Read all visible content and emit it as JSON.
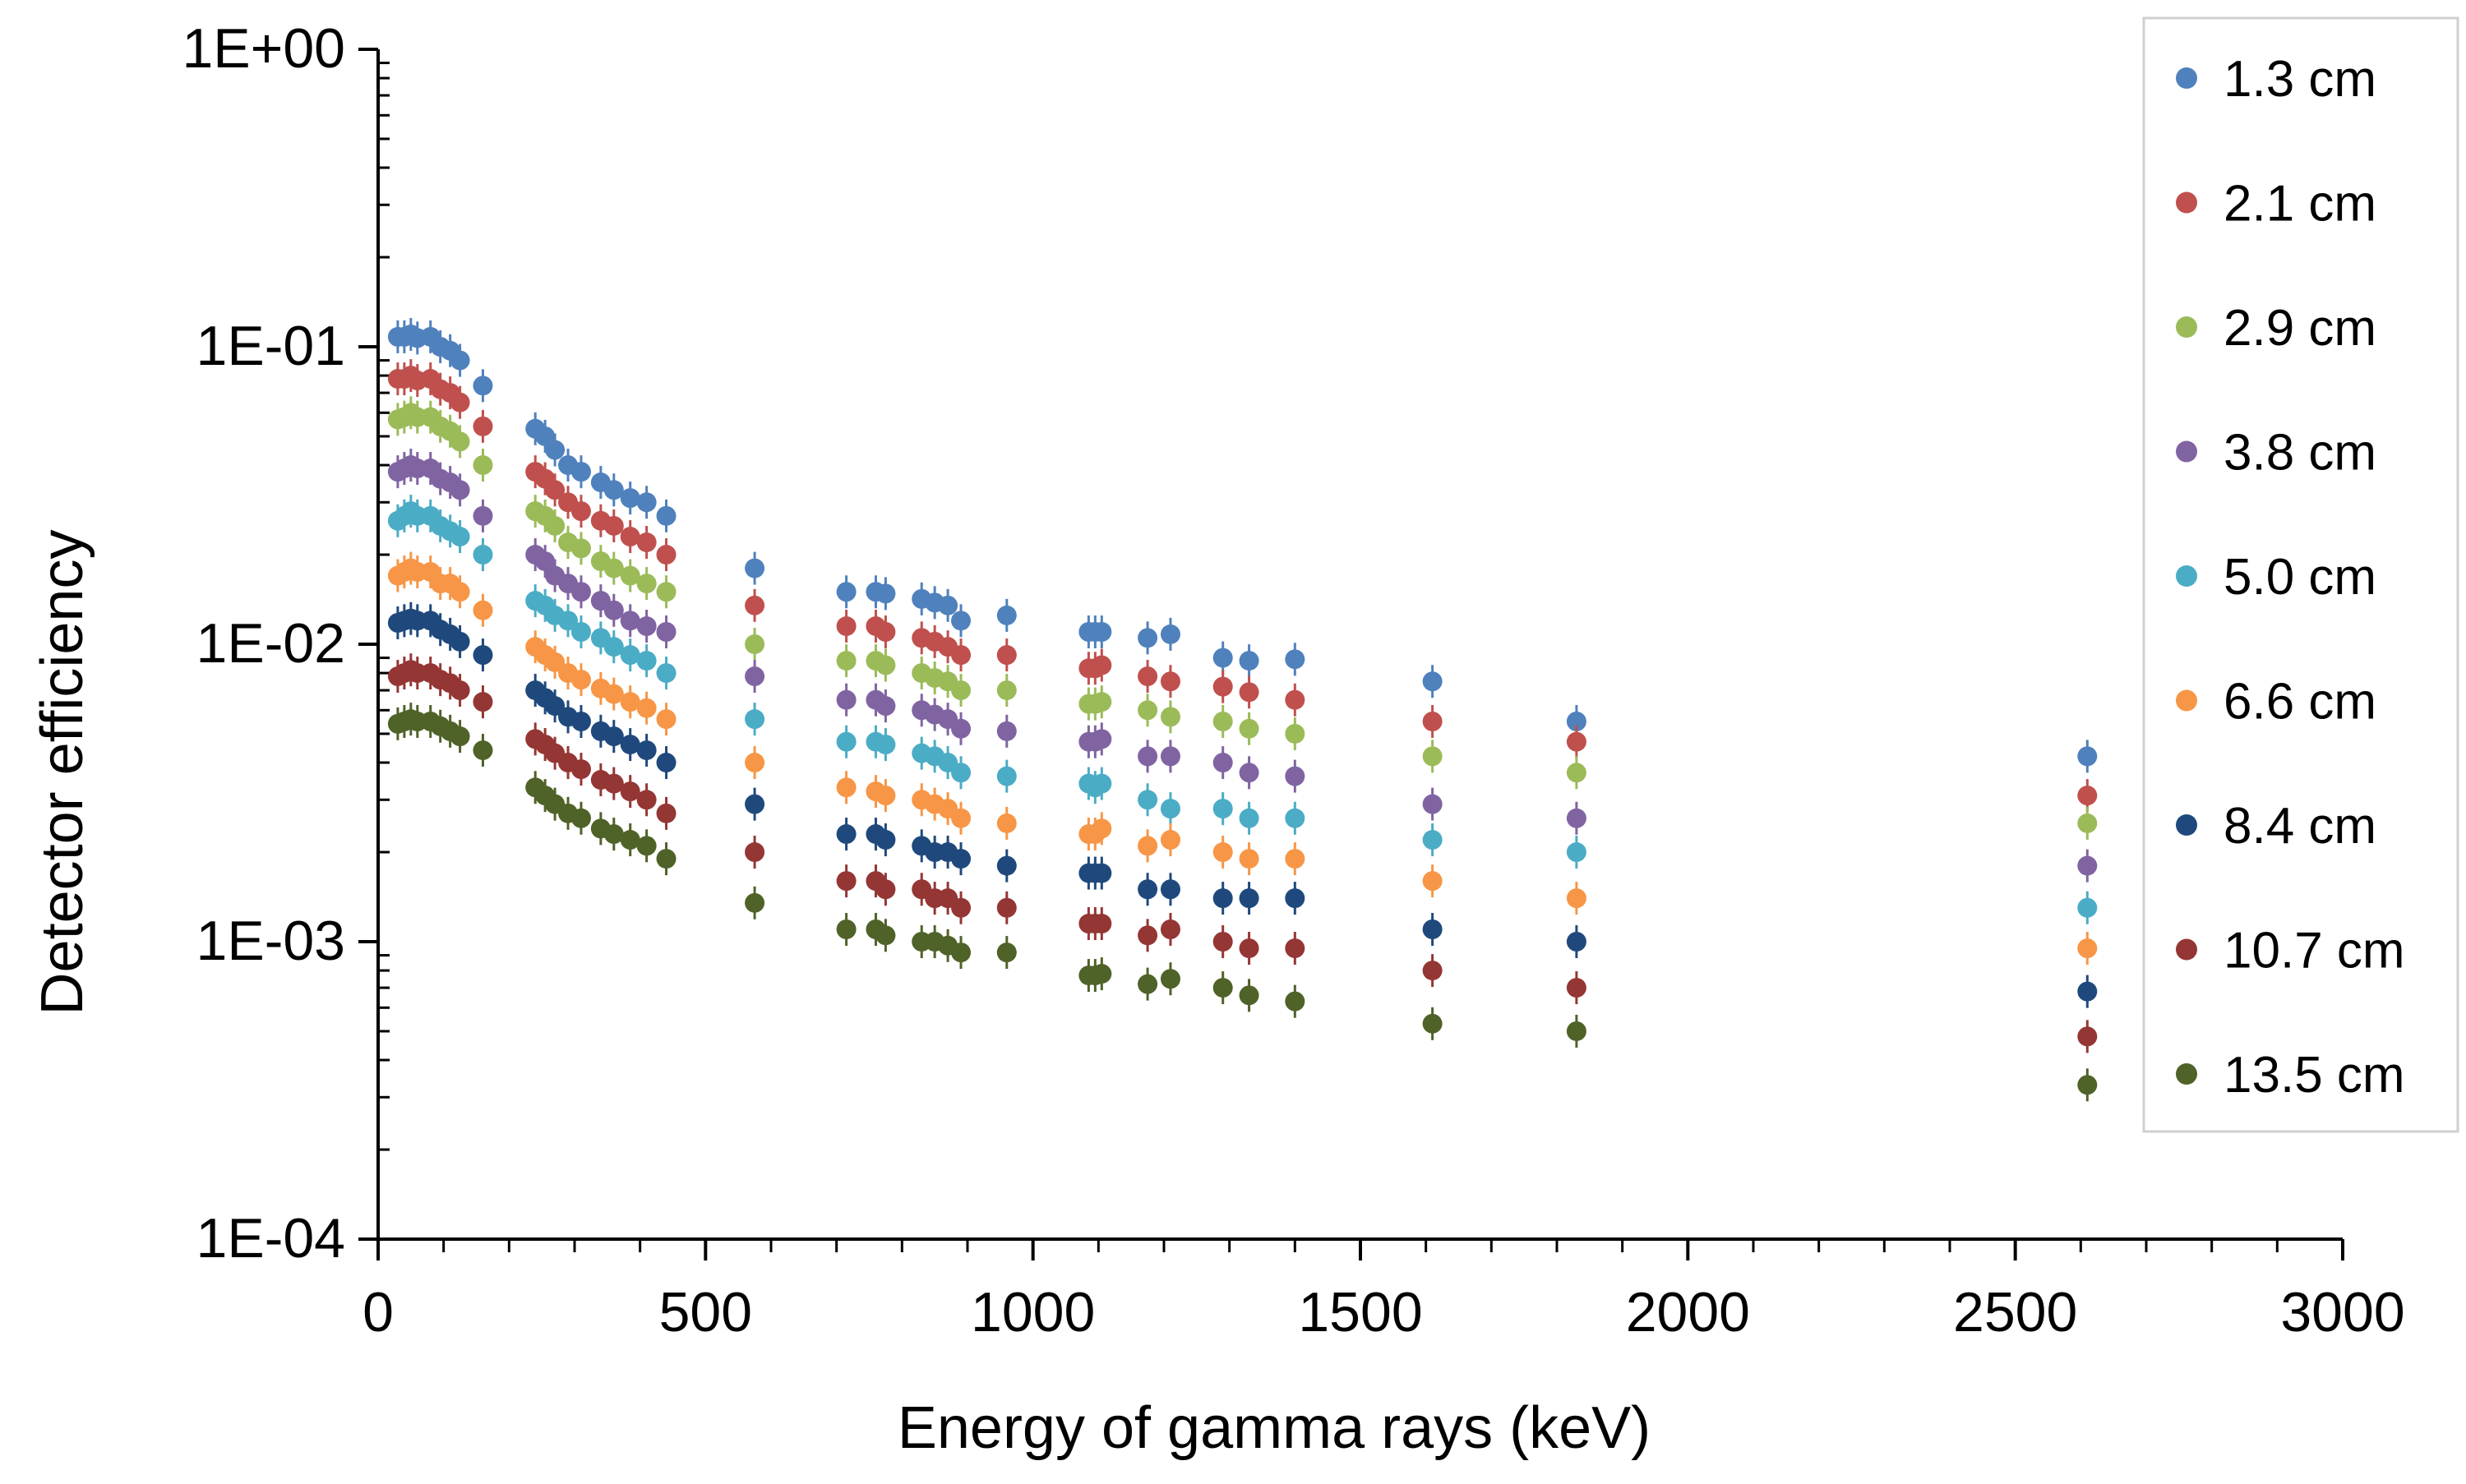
{
  "chart_data": {
    "type": "scatter",
    "title": "",
    "xlabel": "Energy of gamma rays (keV)",
    "ylabel": "Detector efficiency",
    "xlim": [
      0,
      3000
    ],
    "ylim": [
      0.0001,
      1
    ],
    "yscale": "log",
    "x_ticks": [
      "0",
      "500",
      "1000",
      "1500",
      "2000",
      "2500",
      "3000"
    ],
    "y_ticks": [
      "1E+00",
      "1E-01",
      "1E-02",
      "1E-03",
      "1E-04"
    ],
    "y_tick_values": [
      1,
      0.1,
      0.01,
      0.001,
      0.0001
    ],
    "grid": false,
    "legend_position": "right",
    "x": [
      30,
      40,
      50,
      60,
      80,
      95,
      110,
      125,
      160,
      240,
      255,
      270,
      290,
      310,
      340,
      360,
      385,
      410,
      440,
      575,
      715,
      760,
      775,
      830,
      850,
      870,
      890,
      960,
      1085,
      1095,
      1105,
      1175,
      1210,
      1290,
      1330,
      1400,
      1610,
      1830,
      2610
    ],
    "series": [
      {
        "name": "1.3 cm",
        "color": "#4F81BD",
        "values": [
          0.108,
          0.108,
          0.11,
          0.107,
          0.108,
          0.1,
          0.097,
          0.09,
          0.074,
          0.053,
          0.05,
          0.045,
          0.04,
          0.038,
          0.035,
          0.033,
          0.031,
          0.03,
          0.027,
          0.018,
          0.015,
          0.015,
          0.0148,
          0.0142,
          0.0138,
          0.0135,
          0.012,
          0.0125,
          0.011,
          0.011,
          0.011,
          0.0105,
          0.0108,
          0.009,
          0.0088,
          0.0089,
          0.0075,
          0.0055,
          0.0042
        ]
      },
      {
        "name": "2.1 cm",
        "color": "#C0504D",
        "values": [
          0.078,
          0.078,
          0.08,
          0.077,
          0.078,
          0.072,
          0.07,
          0.065,
          0.054,
          0.038,
          0.036,
          0.033,
          0.03,
          0.028,
          0.026,
          0.025,
          0.023,
          0.022,
          0.02,
          0.0135,
          0.0115,
          0.0115,
          0.011,
          0.0105,
          0.0102,
          0.0098,
          0.0092,
          0.0092,
          0.0083,
          0.0083,
          0.0085,
          0.0078,
          0.0075,
          0.0072,
          0.0069,
          0.0065,
          0.0055,
          0.0047,
          0.0031
        ]
      },
      {
        "name": "2.9 cm",
        "color": "#9BBB59",
        "values": [
          0.057,
          0.058,
          0.06,
          0.058,
          0.058,
          0.054,
          0.052,
          0.048,
          0.04,
          0.028,
          0.027,
          0.025,
          0.022,
          0.021,
          0.019,
          0.018,
          0.017,
          0.016,
          0.015,
          0.01,
          0.0088,
          0.0088,
          0.0085,
          0.008,
          0.0077,
          0.0075,
          0.007,
          0.007,
          0.0063,
          0.0063,
          0.0064,
          0.006,
          0.0057,
          0.0055,
          0.0052,
          0.005,
          0.0042,
          0.0037,
          0.0025
        ]
      },
      {
        "name": "3.8 cm",
        "color": "#8064A2",
        "values": [
          0.038,
          0.039,
          0.04,
          0.039,
          0.039,
          0.036,
          0.035,
          0.033,
          0.027,
          0.02,
          0.019,
          0.017,
          0.016,
          0.015,
          0.014,
          0.013,
          0.012,
          0.0115,
          0.011,
          0.0078,
          0.0065,
          0.0065,
          0.0062,
          0.006,
          0.0058,
          0.0056,
          0.0052,
          0.0051,
          0.0047,
          0.0047,
          0.0048,
          0.0042,
          0.0042,
          0.004,
          0.0037,
          0.0036,
          0.0029,
          0.0026,
          0.0018
        ]
      },
      {
        "name": "5.0 cm",
        "color": "#4BACC6",
        "values": [
          0.026,
          0.027,
          0.028,
          0.027,
          0.027,
          0.025,
          0.024,
          0.023,
          0.02,
          0.014,
          0.0135,
          0.0125,
          0.012,
          0.011,
          0.0105,
          0.0098,
          0.0092,
          0.0088,
          0.008,
          0.0056,
          0.0047,
          0.0047,
          0.0046,
          0.0043,
          0.0042,
          0.004,
          0.0037,
          0.0036,
          0.0034,
          0.0033,
          0.0034,
          0.003,
          0.0028,
          0.0028,
          0.0026,
          0.0026,
          0.0022,
          0.002,
          0.0013
        ]
      },
      {
        "name": "6.6 cm",
        "color": "#F79646",
        "values": [
          0.017,
          0.0175,
          0.018,
          0.0175,
          0.0175,
          0.016,
          0.016,
          0.015,
          0.013,
          0.0098,
          0.0092,
          0.0087,
          0.008,
          0.0076,
          0.0071,
          0.0068,
          0.0064,
          0.0061,
          0.0056,
          0.004,
          0.0033,
          0.0032,
          0.0031,
          0.003,
          0.0029,
          0.0028,
          0.0026,
          0.0025,
          0.0023,
          0.0023,
          0.0024,
          0.0021,
          0.0022,
          0.002,
          0.0019,
          0.0019,
          0.0016,
          0.0014,
          0.00095
        ]
      },
      {
        "name": "8.4 cm",
        "color": "#1F497D",
        "values": [
          0.0118,
          0.012,
          0.0122,
          0.012,
          0.012,
          0.0112,
          0.0108,
          0.0102,
          0.0092,
          0.007,
          0.0066,
          0.0062,
          0.0057,
          0.0055,
          0.0051,
          0.0049,
          0.0046,
          0.0044,
          0.004,
          0.0029,
          0.0023,
          0.0023,
          0.0022,
          0.0021,
          0.002,
          0.002,
          0.0019,
          0.0018,
          0.0017,
          0.0017,
          0.0017,
          0.0015,
          0.0015,
          0.0014,
          0.0014,
          0.0014,
          0.0011,
          0.001,
          0.00068
        ]
      },
      {
        "name": "10.7 cm",
        "color": "#943634",
        "values": [
          0.0078,
          0.008,
          0.0082,
          0.008,
          0.008,
          0.0076,
          0.0074,
          0.007,
          0.0064,
          0.0048,
          0.0046,
          0.0043,
          0.004,
          0.0038,
          0.0035,
          0.0034,
          0.0032,
          0.003,
          0.0027,
          0.002,
          0.0016,
          0.0016,
          0.0015,
          0.0015,
          0.0014,
          0.0014,
          0.0013,
          0.0013,
          0.00115,
          0.00115,
          0.00115,
          0.00105,
          0.0011,
          0.001,
          0.00095,
          0.00095,
          0.0008,
          0.0007,
          0.00048
        ]
      },
      {
        "name": "13.5 cm",
        "color": "#4F6228",
        "values": [
          0.0054,
          0.0055,
          0.0056,
          0.0055,
          0.0055,
          0.0053,
          0.0051,
          0.0049,
          0.0044,
          0.0033,
          0.0031,
          0.0029,
          0.0027,
          0.0026,
          0.0024,
          0.0023,
          0.0022,
          0.0021,
          0.0019,
          0.00135,
          0.0011,
          0.0011,
          0.00105,
          0.001,
          0.001,
          0.00097,
          0.00092,
          0.00092,
          0.00077,
          0.00077,
          0.00078,
          0.00072,
          0.00075,
          0.0007,
          0.00066,
          0.00063,
          0.00053,
          0.0005,
          0.00033
        ]
      }
    ]
  }
}
